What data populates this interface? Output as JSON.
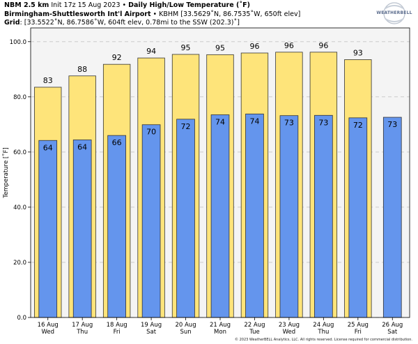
{
  "header": {
    "line1_bold_model": "NBM 2.5 km",
    "line1_init": " Init 17z 15 Aug 2023 • ",
    "line1_bold_title": "Daily High/Low Temperature (˚F)",
    "line2_bold_station": "Birmingham-Shuttlesworth Int'l Airport",
    "line2_detail": " • KBHM [33.5629˚N, 86.7535˚W, 650ft elev]",
    "line3_bold_grid": "Grid",
    "line3_detail": ": [33.5522˚N, 86.7586˚W, 604ft elev, 0.78mi to the SSW (202.3)˚]"
  },
  "logo": {
    "text": "WEATHERBELL"
  },
  "footer": {
    "text": "© 2023 WeatherBELL Analytics, LLC. All rights reserved. License required for commercial distribution."
  },
  "colors": {
    "high": "#fee47a",
    "low": "#6495ed",
    "plot_bg": "#f4f4f4",
    "grid": "#cccccc"
  },
  "chart_data": {
    "type": "bar",
    "ylabel": "Temperature [˚F]",
    "ylim": [
      0,
      105
    ],
    "yticks": [
      "0.0",
      "20.0",
      "40.0",
      "60.0",
      "80.0",
      "100.0"
    ],
    "grid": true,
    "categories": [
      {
        "date": "16 Aug",
        "day": "Wed"
      },
      {
        "date": "17 Aug",
        "day": "Thu"
      },
      {
        "date": "18 Aug",
        "day": "Fri"
      },
      {
        "date": "19 Aug",
        "day": "Sat"
      },
      {
        "date": "20 Aug",
        "day": "Sun"
      },
      {
        "date": "21 Aug",
        "day": "Mon"
      },
      {
        "date": "22 Aug",
        "day": "Tue"
      },
      {
        "date": "23 Aug",
        "day": "Wed"
      },
      {
        "date": "24 Aug",
        "day": "Thu"
      },
      {
        "date": "25 Aug",
        "day": "Fri"
      },
      {
        "date": "26 Aug",
        "day": "Sat"
      }
    ],
    "series": [
      {
        "key": "high",
        "values": [
          83.5,
          87.6,
          91.8,
          94.1,
          95.4,
          95.3,
          95.9,
          96.2,
          96.2,
          93.5,
          null
        ],
        "labels": [
          "83",
          "88",
          "92",
          "94",
          "95",
          "95",
          "96",
          "96",
          "96",
          "93",
          ""
        ]
      },
      {
        "key": "low",
        "values": [
          64.2,
          64.4,
          66.0,
          69.9,
          71.9,
          73.5,
          73.8,
          73.2,
          73.3,
          72.4,
          72.6
        ],
        "labels": [
          "64",
          "64",
          "66",
          "70",
          "72",
          "74",
          "74",
          "73",
          "73",
          "72",
          "73"
        ]
      }
    ]
  }
}
